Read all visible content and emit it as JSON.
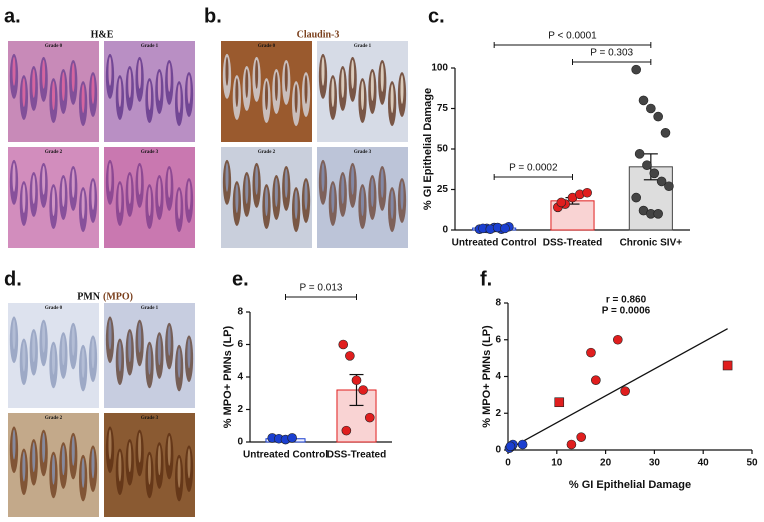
{
  "panel_a": {
    "label": "a.",
    "title": "H&E",
    "grades": [
      "Grade 0",
      "Grade 1",
      "Grade 2",
      "Grade 3"
    ]
  },
  "panel_b": {
    "label": "b.",
    "title": "Claudin-3",
    "grades": [
      "Grade 0",
      "Grade 1",
      "Grade 2",
      "Grade 3"
    ]
  },
  "panel_d": {
    "label": "d.",
    "title": "PMN",
    "title_stain": "(MPO)",
    "grades": [
      "Grade 0",
      "Grade 1",
      "Grade 2",
      "Grade 3"
    ]
  },
  "chart_data": [
    {
      "type": "bar",
      "panel_label": "c.",
      "ylabel": "% GI Epithelial Damage",
      "categories": [
        "Untreated Control",
        "DSS-Treated",
        "Chronic SIV+"
      ],
      "values": [
        1.2,
        18,
        39
      ],
      "errors": [
        0.3,
        2,
        8
      ],
      "colors": [
        "#eef0ff",
        "#f9d3d3",
        "#dddddd"
      ],
      "point_colors": [
        "#1b3fd0",
        "#e01e1e",
        "#444444"
      ],
      "points": [
        [
          0.5,
          1,
          1.5,
          0.5,
          2,
          1,
          0.5,
          1.5,
          1
        ],
        [
          14,
          16,
          20,
          22,
          23,
          17
        ],
        [
          99,
          80,
          75,
          70,
          60,
          47,
          40,
          35,
          30,
          27,
          20,
          12,
          10,
          10
        ]
      ],
      "ylim": [
        0,
        100
      ],
      "yticks": [
        0,
        25,
        50,
        75,
        100
      ],
      "comparisons": [
        {
          "groups": [
            "Untreated Control",
            "Chronic SIV+"
          ],
          "label": "P < 0.0001"
        },
        {
          "groups": [
            "DSS-Treated",
            "Chronic SIV+"
          ],
          "label": "P = 0.303"
        },
        {
          "groups": [
            "Untreated Control",
            "DSS-Treated"
          ],
          "label": "P = 0.0002"
        }
      ]
    },
    {
      "type": "bar",
      "panel_label": "e.",
      "ylabel": "% MPO+ PMNs (LP)",
      "categories": [
        "Untreated Control",
        "DSS-Treated"
      ],
      "values": [
        0.2,
        3.2
      ],
      "errors": [
        0.04,
        0.95
      ],
      "colors": [
        "#eef0ff",
        "#f9d3d3"
      ],
      "point_colors": [
        "#1b3fd0",
        "#e01e1e"
      ],
      "points": [
        [
          0.25,
          0.2,
          0.15,
          0.25
        ],
        [
          6.0,
          5.3,
          3.8,
          3.2,
          1.5,
          0.7
        ]
      ],
      "ylim": [
        0,
        8
      ],
      "yticks": [
        0,
        2,
        4,
        6,
        8
      ],
      "comparisons": [
        {
          "groups": [
            "Untreated Control",
            "DSS-Treated"
          ],
          "label": "P = 0.013"
        }
      ]
    },
    {
      "type": "scatter",
      "panel_label": "f.",
      "xlabel": "% GI Epithelial Damage",
      "ylabel": "% MPO+ PMNs (LP)",
      "series": [
        {
          "color": "#1b3fd0",
          "marker": "circle",
          "x": [
            0.3,
            0.8,
            1,
            3,
            0.5
          ],
          "y": [
            0.1,
            0.2,
            0.3,
            0.3,
            0.2
          ]
        },
        {
          "color": "#e01e1e",
          "marker": "circle",
          "x": [
            13,
            15,
            17,
            18,
            22.5,
            24
          ],
          "y": [
            0.3,
            0.7,
            5.3,
            3.8,
            6.0,
            3.2
          ]
        },
        {
          "color": "#e01e1e",
          "marker": "square",
          "x": [
            10.5,
            45
          ],
          "y": [
            2.6,
            4.6
          ]
        }
      ],
      "fit": {
        "x": [
          0.5,
          45
        ],
        "y": [
          0.1,
          6.6
        ]
      },
      "annotations": [
        "r = 0.860",
        "P = 0.0006"
      ],
      "xlim": [
        0,
        50
      ],
      "xticks": [
        0,
        10,
        20,
        30,
        40,
        50
      ],
      "ylim": [
        0,
        8
      ],
      "yticks": [
        0,
        2,
        4,
        6,
        8
      ]
    }
  ]
}
